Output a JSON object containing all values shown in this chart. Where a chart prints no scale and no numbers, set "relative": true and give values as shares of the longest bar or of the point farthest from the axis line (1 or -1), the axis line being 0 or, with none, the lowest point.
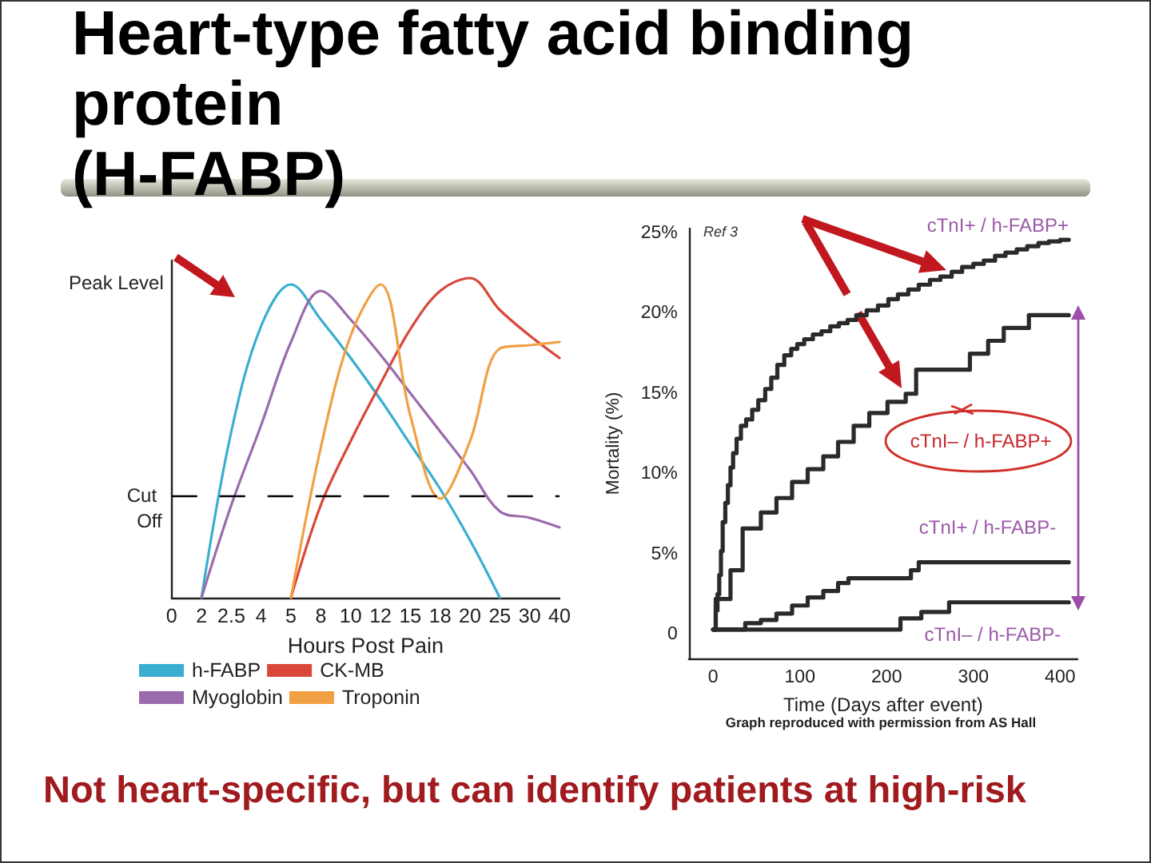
{
  "chart_data": [
    {
      "type": "line",
      "title": "Heart-type fatty acid binding protein\n(H-FABP)",
      "xlabel": "Hours Post Pain",
      "ylabel": "Peak Level",
      "relative": true,
      "marker": "none",
      "legend": "bottom",
      "categories": [
        "0",
        "2",
        "2.5",
        "4",
        "5",
        "8",
        "10",
        "12",
        "15",
        "18",
        "20",
        "25",
        "30",
        "40"
      ],
      "series": [
        {
          "name": "h-FABP",
          "color": "#3aaed0",
          "values": [
            null,
            0,
            0.52,
            0.85,
            0.98,
            0.87,
            0.75,
            0.62,
            0.48,
            0.34,
            0.18,
            0,
            null,
            null
          ]
        },
        {
          "name": "CK-MB",
          "color": "#d9473a",
          "values": [
            null,
            null,
            null,
            null,
            0,
            0.29,
            0.49,
            0.67,
            0.84,
            0.96,
            1,
            0.9,
            0.82,
            0.75
          ]
        },
        {
          "name": "Myoglobin",
          "color": "#9a6aad",
          "values": [
            null,
            0,
            0.29,
            0.54,
            0.8,
            0.96,
            0.87,
            0.76,
            0.64,
            0.52,
            0.4,
            0.27,
            0.25,
            0.22
          ]
        },
        {
          "name": "Troponin",
          "color": "#f0a043",
          "values": [
            null,
            null,
            null,
            null,
            0,
            0.47,
            0.82,
            0.98,
            0.57,
            0.31,
            0.49,
            0.78,
            0.79,
            0.8
          ]
        }
      ],
      "ref_lines": [
        {
          "axis": "y",
          "value": 0.32,
          "label": "Cut Off",
          "color": "#000000",
          "line_style": "dashed"
        }
      ],
      "annotations": [
        "Not heart-specific, but can identify patients at high-risk"
      ]
    },
    {
      "type": "step",
      "xlabel": "Time (Days after event)",
      "ylabel": "Mortality (%)",
      "marker": "none",
      "xlim": [
        -28,
        420
      ],
      "xticks": [
        0,
        100,
        200,
        300,
        400
      ],
      "ylim": [
        -1.5,
        25.3
      ],
      "yticks": [
        0,
        {
          "value": 5,
          "label": "5%"
        },
        {
          "value": 10,
          "label": "10%"
        },
        {
          "value": 15,
          "label": "15%"
        },
        {
          "value": 20,
          "label": "20%"
        },
        {
          "value": 25,
          "label": "25%"
        }
      ],
      "series": [
        {
          "name": "cTnI+ / h-FABP+",
          "color": "#2a2a2a",
          "x": [
            0,
            3,
            5,
            7,
            9,
            11,
            14,
            17,
            20,
            23,
            27,
            32,
            38,
            45,
            52,
            60,
            67,
            74,
            82,
            90,
            97,
            105,
            115,
            125,
            135,
            145,
            155,
            165,
            177,
            190,
            202,
            213,
            225,
            237,
            250,
            262,
            275,
            287,
            300,
            312,
            325,
            337,
            350,
            362,
            375,
            387,
            400,
            410
          ],
          "values": [
            0.3,
            1.5,
            2.5,
            3.7,
            5.2,
            7.0,
            8.2,
            9.3,
            10.4,
            11.3,
            12.2,
            13.0,
            13.4,
            14.0,
            14.6,
            15.3,
            16.0,
            16.8,
            17.4,
            17.8,
            18.1,
            18.4,
            18.7,
            18.9,
            19.2,
            19.4,
            19.6,
            19.9,
            20.2,
            20.5,
            20.9,
            21.2,
            21.5,
            21.8,
            22.1,
            22.3,
            22.6,
            22.9,
            23.1,
            23.3,
            23.6,
            23.8,
            24.0,
            24.2,
            24.4,
            24.5,
            24.6,
            24.6
          ]
        },
        {
          "name": "cTnI– / h-FABP+",
          "color": "#2a2a2a",
          "x": [
            0,
            3,
            20,
            34,
            55,
            73,
            91,
            109,
            127,
            144,
            162,
            180,
            201,
            222,
            234,
            296,
            317,
            335,
            364,
            410
          ],
          "values": [
            0.3,
            2.2,
            4.0,
            6.6,
            7.6,
            8.5,
            9.5,
            10.3,
            11.1,
            12.0,
            13.0,
            13.8,
            14.5,
            15.0,
            16.5,
            17.5,
            18.3,
            19.1,
            19.9,
            19.9
          ]
        },
        {
          "name": "cTnI+ / h-FABP-",
          "color": "#2a2a2a",
          "x": [
            0,
            37,
            55,
            73,
            91,
            109,
            127,
            144,
            156,
            228,
            237,
            410
          ],
          "values": [
            0.3,
            0.7,
            0.9,
            1.3,
            1.8,
            2.3,
            2.7,
            3.2,
            3.5,
            4.0,
            4.5,
            4.5
          ]
        },
        {
          "name": "cTnI– / h-FABP-",
          "color": "#2a2a2a",
          "x": [
            0,
            216,
            240,
            272,
            410
          ],
          "values": [
            0.3,
            1.0,
            1.4,
            2.0,
            2.0
          ]
        }
      ],
      "annotations": [
        "Ref 3",
        "Graph reproduced with permission from AS Hall"
      ]
    }
  ]
}
